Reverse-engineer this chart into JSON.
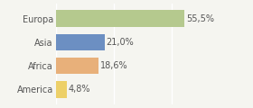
{
  "categories": [
    "Europa",
    "Asia",
    "Africa",
    "America"
  ],
  "values": [
    55.5,
    21.0,
    18.6,
    4.8
  ],
  "labels": [
    "55,5%",
    "21,0%",
    "18,6%",
    "4,8%"
  ],
  "bar_colors": [
    "#b5c98e",
    "#6c8fc2",
    "#e8b07a",
    "#edd068"
  ],
  "background_color": "#f5f5f0",
  "grid_color": "#ffffff",
  "text_color": "#555555",
  "xlim": [
    0,
    72
  ],
  "label_fontsize": 7.0,
  "tick_fontsize": 7.0,
  "bar_height": 0.72
}
